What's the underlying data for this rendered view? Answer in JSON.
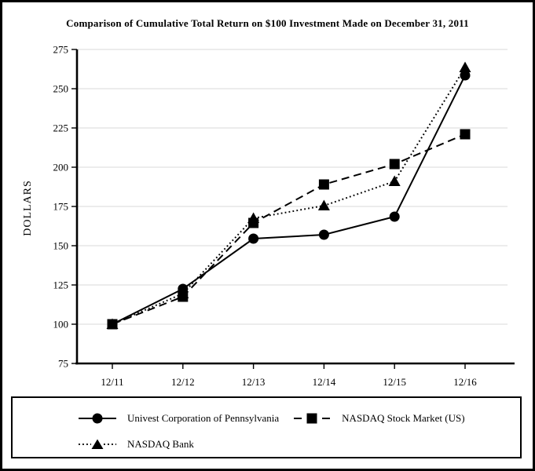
{
  "chart_data": {
    "type": "line",
    "title": "Comparison of Cumulative Total Return on $100 Investment Made on December 31, 2011",
    "categories": [
      "12/11",
      "12/12",
      "12/13",
      "12/14",
      "12/15",
      "12/16"
    ],
    "series": [
      {
        "name": "Univest Corporation of Pennsylvania",
        "marker": "circle",
        "line_style": "solid",
        "values": [
          100,
          122.5,
          154.5,
          157,
          168.5,
          258.5
        ]
      },
      {
        "name": "NASDAQ Stock Market (US)",
        "marker": "square",
        "line_style": "dashed",
        "values": [
          100,
          117.5,
          164.5,
          189,
          202,
          221
        ]
      },
      {
        "name": "NASDAQ Bank",
        "marker": "triangle",
        "line_style": "dotted",
        "values": [
          100,
          119.5,
          167.5,
          175.5,
          191,
          263.5
        ]
      }
    ],
    "xlabel": "",
    "ylabel": "DOLLARS",
    "ylim": [
      75,
      275
    ],
    "ytick_step": 25,
    "grid": "horizontal",
    "legend_position": "bottom",
    "colors": {
      "series": "#000000",
      "gridline": "#e0e0e0",
      "background": "#ffffff"
    }
  }
}
